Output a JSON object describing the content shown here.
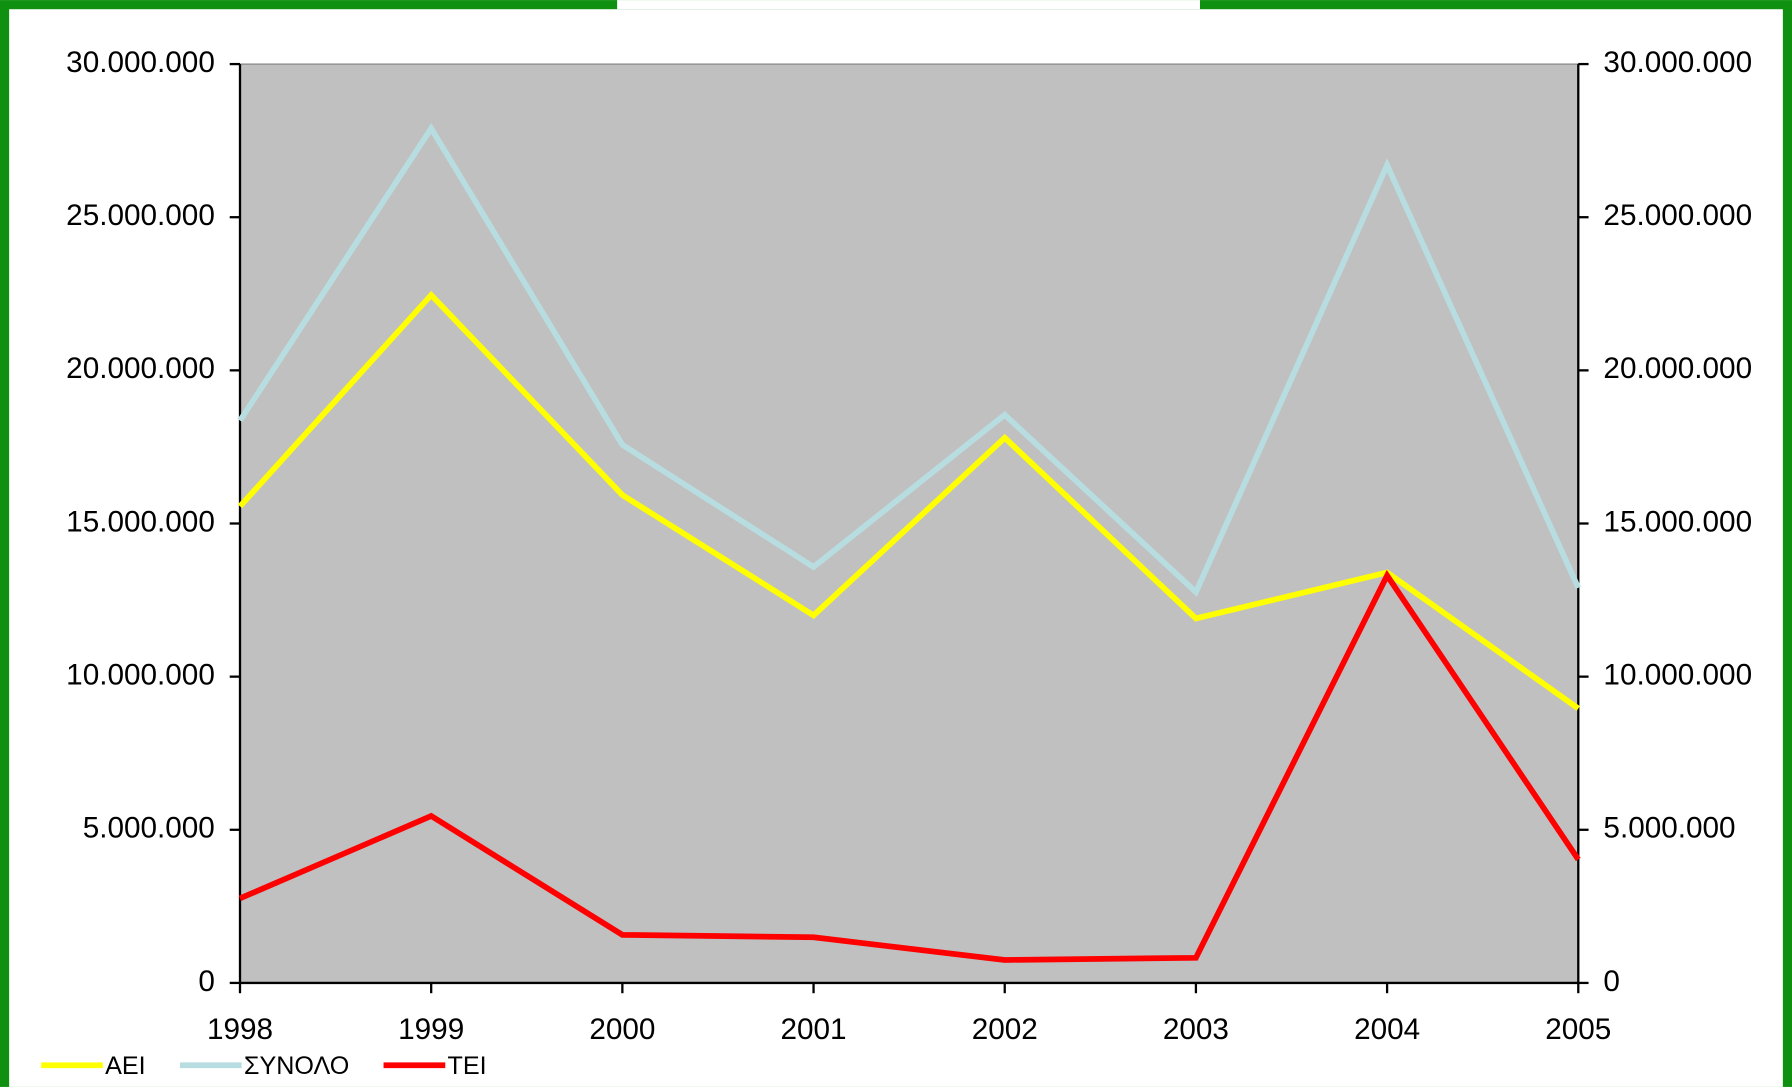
{
  "chart_data": {
    "type": "line",
    "categories": [
      "1998",
      "1999",
      "2000",
      "2001",
      "2002",
      "2003",
      "2004",
      "2005"
    ],
    "series": [
      {
        "name": "ΑΕΙ",
        "color": "#ffff00",
        "values": [
          15560000,
          22460000,
          15930000,
          12000000,
          17800000,
          11900000,
          13400000,
          8960000
        ]
      },
      {
        "name": "ΣΥΝΟΛΟ",
        "color": "#b8dde0",
        "values": [
          18360000,
          27900000,
          17570000,
          13580000,
          18550000,
          12760000,
          26700000,
          12900000
        ]
      },
      {
        "name": "ΤΕΙ",
        "color": "#ff0000",
        "values": [
          2760000,
          5450000,
          1570000,
          1490000,
          750000,
          820000,
          13300000,
          4030000
        ]
      }
    ],
    "ylim": [
      0,
      30000000
    ],
    "yticks": [
      0,
      {
        "value": 5000000,
        "label": "5.000.000"
      },
      {
        "value": 10000000,
        "label": "10.000.000"
      },
      {
        "value": 15000000,
        "label": "15.000.000"
      },
      {
        "value": 20000000,
        "label": "20.000.000"
      },
      {
        "value": 25000000,
        "label": "25.000.000"
      },
      {
        "value": 30000000,
        "label": "30.000.000"
      }
    ],
    "y2lim": [
      0,
      30000000
    ],
    "y2ticks": [
      0,
      {
        "value": 5000000,
        "label": "5.000.000"
      },
      {
        "value": 10000000,
        "label": "10.000.000"
      },
      {
        "value": 15000000,
        "label": "15.000.000"
      },
      {
        "value": 20000000,
        "label": "20.000.000"
      },
      {
        "value": 25000000,
        "label": "25.000.000"
      },
      {
        "value": 30000000,
        "label": "30.000.000"
      }
    ],
    "legend": "bottom-left"
  }
}
